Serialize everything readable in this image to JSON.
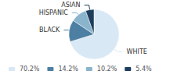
{
  "chart_data": {
    "type": "pie",
    "categories": [
      "WHITE",
      "BLACK",
      "HISPANIC",
      "ASIAN"
    ],
    "values": [
      70.2,
      14.2,
      10.2,
      5.4
    ],
    "value_labels": [
      "70.2%",
      "14.2%",
      "10.2%",
      "5.4%"
    ],
    "colors": [
      "#d9e8f5",
      "#4d7fa3",
      "#8ab4cc",
      "#1e3d5c"
    ],
    "legend": "lower left"
  }
}
